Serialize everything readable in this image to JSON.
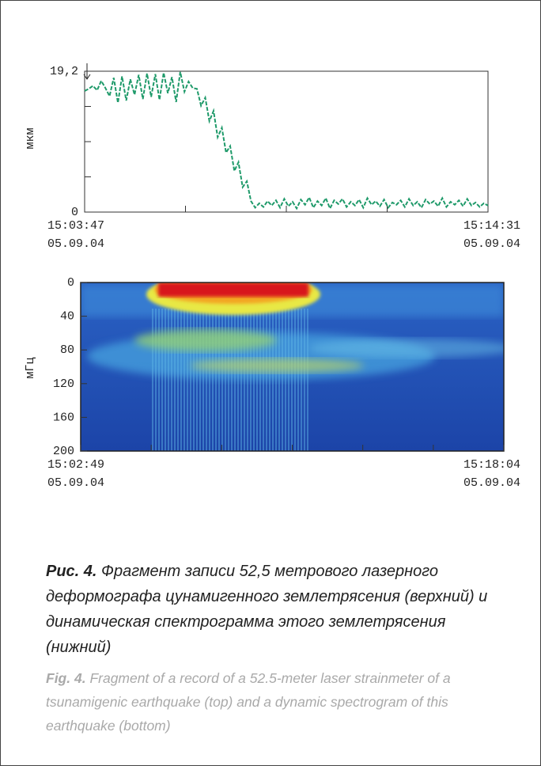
{
  "chart_data": [
    {
      "type": "line",
      "ylabel": "мкм",
      "color": "#1f9a6a",
      "ylim": [
        0,
        19.2
      ],
      "yticks": [
        0,
        {
          "value": 19.2,
          "label": "19,2"
        }
      ],
      "minor_yticks": [
        4.8,
        9.6,
        14.4
      ],
      "xticks": [
        {
          "time": "15:03:47",
          "date": "05.09.04"
        },
        null,
        null,
        null,
        {
          "time": "15:14:31",
          "date": "05.09.04"
        }
      ],
      "values": [
        16.5,
        16.8,
        17.2,
        16.6,
        17.9,
        16.9,
        15.8,
        18.3,
        14.9,
        18.5,
        15.2,
        18.1,
        16.0,
        18.7,
        15.4,
        18.9,
        15.7,
        18.8,
        15.3,
        19.0,
        16.2,
        18.4,
        15.0,
        19.1,
        16.4,
        17.8,
        16.9,
        16.8,
        14.5,
        15.6,
        12.4,
        13.8,
        10.2,
        11.5,
        8.1,
        9.0,
        5.6,
        6.8,
        3.4,
        4.2,
        1.5,
        0.6,
        1.2,
        0.7,
        1.5,
        0.9,
        1.6,
        0.6,
        1.8,
        0.8,
        1.4,
        0.5,
        1.7,
        1.0,
        2.0,
        0.6,
        1.5,
        0.9,
        1.9,
        0.5,
        1.6,
        1.1,
        1.8,
        0.7,
        1.4,
        0.9,
        1.7,
        0.6,
        1.9,
        1.0,
        1.5,
        0.8,
        1.7,
        0.6,
        1.3,
        1.0,
        1.6,
        0.7,
        1.8,
        0.9,
        1.4,
        0.6,
        1.7,
        1.1,
        1.5,
        0.8,
        1.9,
        0.7,
        1.4,
        1.0,
        1.6,
        0.8,
        1.8,
        0.9,
        1.3,
        0.7,
        1.2,
        0.9
      ]
    },
    {
      "type": "heatmap",
      "ylabel": "мГц",
      "ylim": [
        200,
        0
      ],
      "yticks": [
        0,
        40,
        80,
        120,
        160,
        200
      ],
      "xticks": [
        {
          "time": "15:02:49",
          "date": "05.09.04"
        },
        null,
        null,
        null,
        null,
        null,
        {
          "time": "15:18:04",
          "date": "05.09.04"
        }
      ]
    }
  ],
  "caption": {
    "ru_label": "Рис. 4.",
    "ru_text": "Фрагмент записи 52,5 метрового лазерного деформографа цунамигенного землетрясения (верхний) и динамическая спектрограмма этого землетрясения (нижний)",
    "en_label": "Fig. 4.",
    "en_text": "Fragment of a record of a 52.5-meter laser strainmeter of a tsunamigenic earthquake (top) and a dynamic spectrogram of this earthquake (bottom)"
  }
}
